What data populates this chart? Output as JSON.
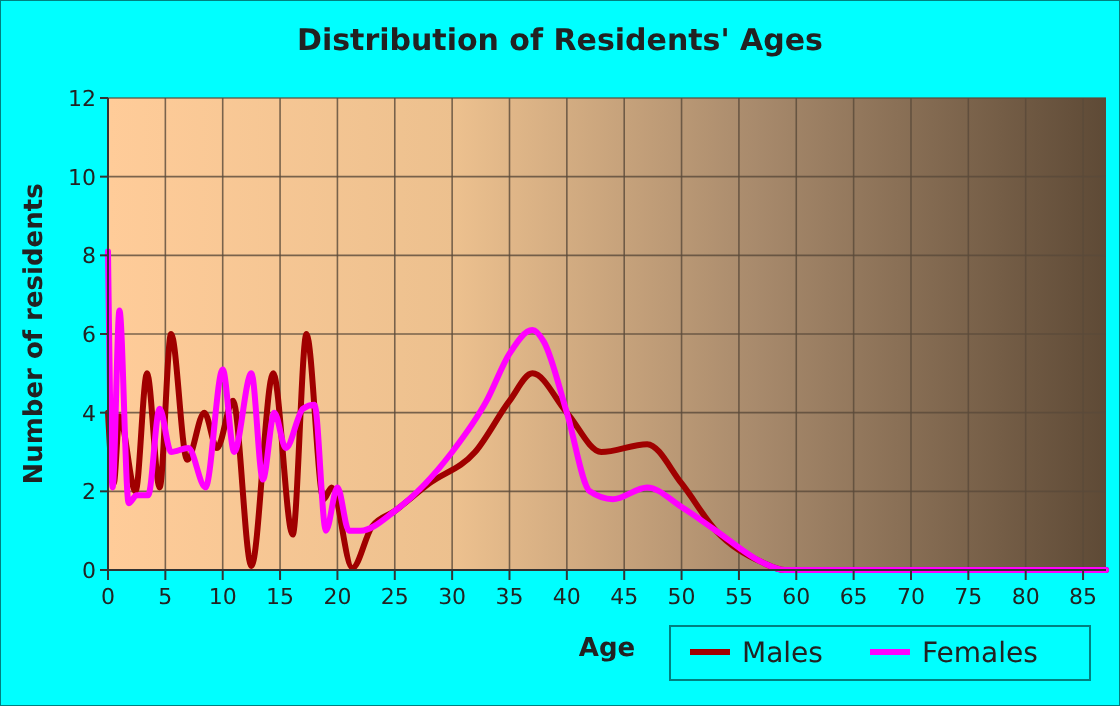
{
  "chart_data": {
    "type": "line",
    "title": "Distribution of Residents' Ages",
    "xlabel": "Age",
    "ylabel": "Number of residents",
    "xlim": [
      0,
      87
    ],
    "xticks": [
      0,
      5,
      10,
      15,
      20,
      25,
      30,
      35,
      40,
      45,
      50,
      55,
      60,
      65,
      70,
      75,
      80,
      85
    ],
    "ylim": [
      0,
      12
    ],
    "yticks": [
      0,
      2,
      4,
      6,
      8,
      10,
      12
    ],
    "grid": true,
    "legend": "bottom right",
    "line_style": "solid",
    "series": [
      {
        "name": "Males",
        "color": "#a00000",
        "x": [
          0,
          0.5,
          1,
          2.4,
          3.4,
          4.5,
          5.5,
          6.9,
          8.4,
          9.5,
          10.9,
          12.5,
          14.4,
          16.1,
          17.3,
          18.8,
          19.5,
          21.3,
          23,
          25,
          28,
          32,
          35,
          37,
          40,
          43,
          47,
          50,
          53,
          57,
          59,
          87
        ],
        "values": [
          4,
          2.2,
          3.9,
          2,
          5,
          2.1,
          6,
          2.8,
          4,
          3.1,
          4.3,
          0.1,
          5,
          0.9,
          6,
          1.8,
          2.1,
          0.05,
          1.1,
          1.5,
          2.2,
          3,
          4.3,
          5,
          4,
          3,
          3.2,
          2.2,
          1,
          0.2,
          0,
          0
        ]
      },
      {
        "name": "Females",
        "color": "#ff00ff",
        "x": [
          0,
          0.4,
          1,
          1.8,
          2.5,
          3.5,
          4.5,
          5.5,
          7,
          8.5,
          10,
          11,
          12.5,
          13.5,
          14.5,
          15.5,
          17,
          18,
          19,
          20,
          21,
          22,
          25,
          30,
          33,
          35,
          37,
          38,
          40,
          42,
          44,
          47,
          50,
          53,
          57,
          59,
          87
        ],
        "values": [
          8.1,
          2.1,
          6.6,
          1.7,
          1.9,
          1.9,
          4.1,
          3,
          3.1,
          2.1,
          5.1,
          3,
          5,
          2.3,
          4,
          3.1,
          4.1,
          4.2,
          1,
          2.1,
          1,
          1,
          1.5,
          3,
          4.3,
          5.5,
          6.1,
          5.8,
          4,
          2,
          1.8,
          2.1,
          1.6,
          1,
          0.2,
          0,
          0
        ]
      }
    ]
  }
}
